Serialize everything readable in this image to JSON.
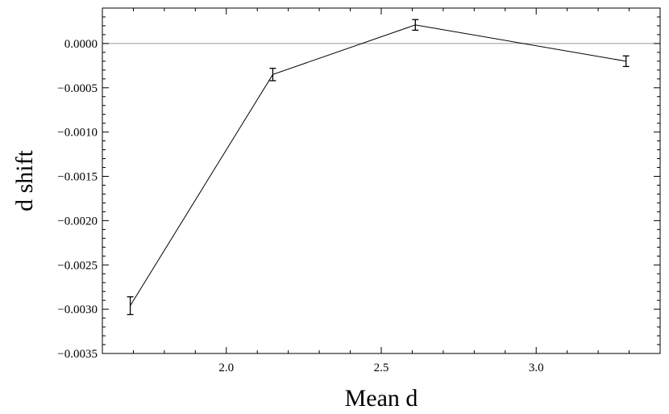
{
  "chart_data": {
    "type": "line",
    "xlabel": "Mean d",
    "ylabel": "d shift",
    "xlim": [
      1.6,
      3.4
    ],
    "ylim": [
      -0.0035,
      0.0004
    ],
    "grid": false,
    "zero_line": true,
    "x_ticks": [
      {
        "value": 2.0,
        "label": "2.0"
      },
      {
        "value": 2.5,
        "label": "2.5"
      },
      {
        "value": 3.0,
        "label": "3.0"
      }
    ],
    "y_ticks": [
      {
        "value": 0.0,
        "label": "0.0000"
      },
      {
        "value": -0.0005,
        "label": "−0.0005"
      },
      {
        "value": -0.001,
        "label": "−0.0010"
      },
      {
        "value": -0.0015,
        "label": "−0.0015"
      },
      {
        "value": -0.002,
        "label": "−0.0020"
      },
      {
        "value": -0.0025,
        "label": "−0.0025"
      },
      {
        "value": -0.003,
        "label": "−0.0030"
      },
      {
        "value": -0.0035,
        "label": "−0.0035"
      }
    ],
    "series": [
      {
        "points": [
          {
            "x": 1.69,
            "y": -0.00296,
            "err": 0.0001
          },
          {
            "x": 2.15,
            "y": -0.00035,
            "err": 7e-05
          },
          {
            "x": 2.61,
            "y": 0.00021,
            "err": 6e-05
          },
          {
            "x": 3.29,
            "y": -0.0002,
            "err": 6e-05
          }
        ]
      }
    ],
    "colors": {
      "line": "#000000",
      "frame": "#000000",
      "zero_line": "#999999"
    }
  }
}
